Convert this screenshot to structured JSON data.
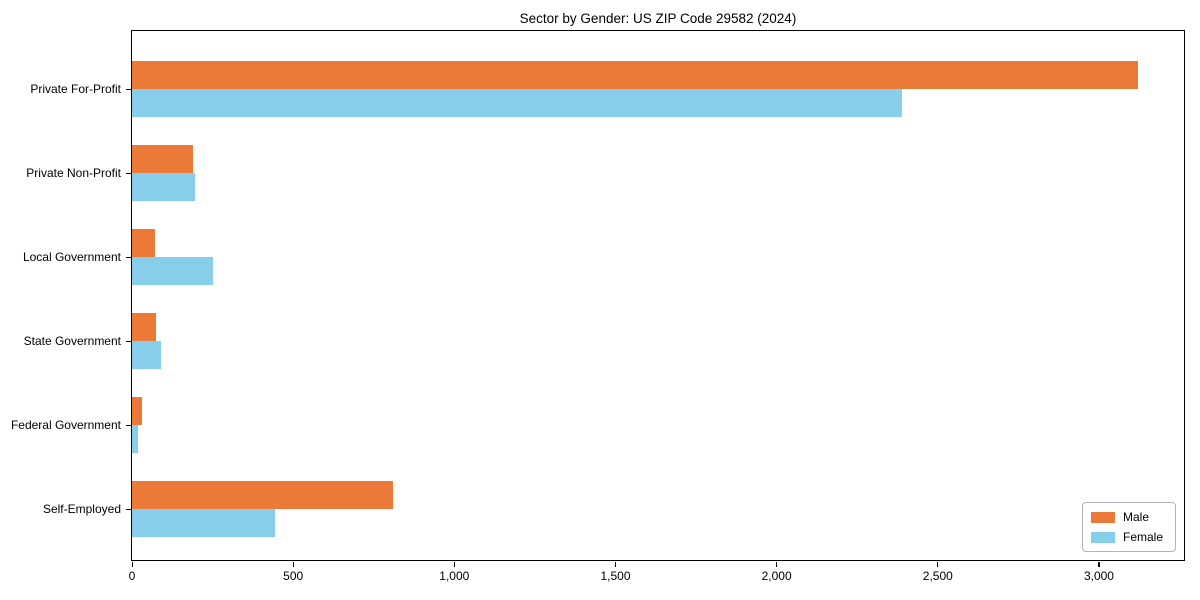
{
  "chart_data": {
    "type": "bar",
    "orientation": "horizontal",
    "title": "Sector by Gender: US ZIP Code 29582 (2024)",
    "xlabel": "",
    "ylabel": "",
    "categories": [
      "Private For-Profit",
      "Private Non-Profit",
      "Local Government",
      "State Government",
      "Federal Government",
      "Self-Employed"
    ],
    "series": [
      {
        "name": "Male",
        "color": "#EB7A39",
        "values": [
          3120,
          190,
          72,
          74,
          30,
          810
        ]
      },
      {
        "name": "Female",
        "color": "#87CEEB",
        "values": [
          2390,
          195,
          250,
          90,
          18,
          445
        ]
      }
    ],
    "xlim": [
      0,
      3270
    ],
    "x_ticks": [
      0,
      500,
      1000,
      1500,
      2000,
      2500,
      3000
    ],
    "x_tick_labels": [
      "0",
      "500",
      "1,000",
      "1,500",
      "2,000",
      "2,500",
      "3,000"
    ],
    "grid": false,
    "legend_position": "lower right"
  },
  "legend": {
    "items": [
      {
        "label": "Male"
      },
      {
        "label": "Female"
      }
    ]
  }
}
